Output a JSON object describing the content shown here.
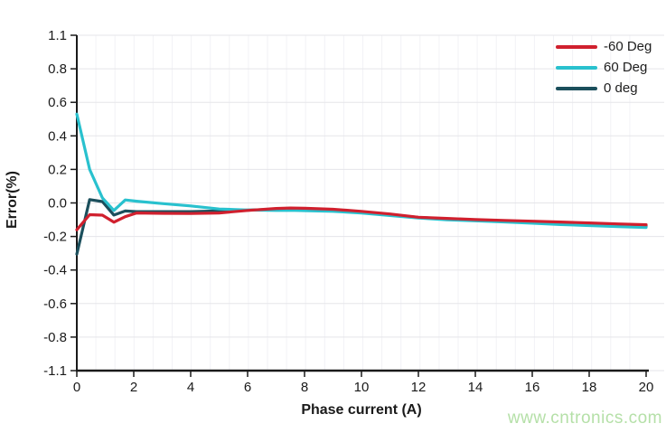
{
  "chart_data": {
    "type": "line",
    "title": "",
    "xlabel": "Phase current (A)",
    "ylabel": "Error(%)",
    "xlim": [
      0,
      20
    ],
    "x_tick_labels": [
      "0",
      "2",
      "4",
      "6",
      "8",
      "10",
      "12",
      "14",
      "16",
      "18",
      "20"
    ],
    "x_tick_values": [
      0,
      2,
      4,
      6,
      8,
      10,
      12,
      14,
      16,
      18,
      20
    ],
    "y_tick_labels": [
      "1.1",
      "0.8",
      "0.6",
      "0.4",
      "0.2",
      "0.0",
      "-0.2",
      "-0.4",
      "-0.6",
      "-0.8",
      "-1.1"
    ],
    "y_axis_note": "ticks evenly spaced; linear 0.2 steps between -0.8 and 0.8, end labels 1.1/-1.1",
    "grid": "horizontal major gridlines on, faint vertical minor gridlines",
    "legend_position": "top-right, no border",
    "x": [
      0,
      0.45,
      0.9,
      1.3,
      1.7,
      2.1,
      3,
      4,
      5,
      6,
      7,
      7.5,
      8,
      9,
      10,
      11,
      12,
      13,
      14,
      15,
      16,
      17,
      18,
      19,
      20
    ],
    "series": [
      {
        "name": "-60 Deg",
        "color": "#d0202e",
        "y": [
          -0.16,
          -0.07,
          -0.073,
          -0.115,
          -0.082,
          -0.06,
          -0.062,
          -0.063,
          -0.06,
          -0.045,
          -0.033,
          -0.03,
          -0.032,
          -0.038,
          -0.05,
          -0.066,
          -0.085,
          -0.092,
          -0.099,
          -0.104,
          -0.109,
          -0.114,
          -0.119,
          -0.125,
          -0.13
        ]
      },
      {
        "name": "60 Deg",
        "color": "#29c1ce",
        "y": [
          0.53,
          0.2,
          0.03,
          -0.045,
          0.018,
          0.01,
          -0.004,
          -0.018,
          -0.036,
          -0.042,
          -0.045,
          -0.044,
          -0.046,
          -0.05,
          -0.06,
          -0.075,
          -0.09,
          -0.1,
          -0.107,
          -0.113,
          -0.121,
          -0.129,
          -0.135,
          -0.141,
          -0.146
        ]
      },
      {
        "name": "0 deg",
        "color": "#1b4f5c",
        "y": [
          -0.305,
          0.02,
          0.008,
          -0.072,
          -0.048,
          -0.052,
          -0.052,
          -0.052,
          -0.048,
          -0.043,
          -0.038,
          -0.037,
          -0.04,
          -0.046,
          -0.056,
          -0.07,
          -0.086,
          -0.095,
          -0.102,
          -0.108,
          -0.115,
          -0.121,
          -0.127,
          -0.132,
          -0.137
        ]
      }
    ],
    "colors": {
      "axis": "#1a1a1a",
      "tick_label": "#1a1a1a",
      "gridline": "#e5e5e9",
      "minor_vertical_gridline": "#f2f2f6",
      "background": "#ffffff"
    }
  },
  "watermark": {
    "text": "www.cntronics.com",
    "color": "#b5e0a8"
  }
}
